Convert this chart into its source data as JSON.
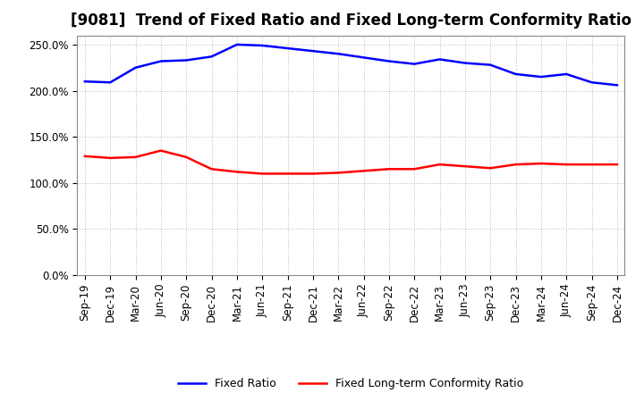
{
  "title": "[9081]  Trend of Fixed Ratio and Fixed Long-term Conformity Ratio",
  "x_labels": [
    "Sep-19",
    "Dec-19",
    "Mar-20",
    "Jun-20",
    "Sep-20",
    "Dec-20",
    "Mar-21",
    "Jun-21",
    "Sep-21",
    "Dec-21",
    "Mar-22",
    "Jun-22",
    "Sep-22",
    "Dec-22",
    "Mar-23",
    "Jun-23",
    "Sep-23",
    "Dec-23",
    "Mar-24",
    "Jun-24",
    "Sep-24",
    "Dec-24"
  ],
  "fixed_ratio": [
    210,
    209,
    225,
    232,
    233,
    237,
    250,
    249,
    246,
    243,
    240,
    236,
    232,
    229,
    234,
    230,
    228,
    218,
    215,
    218,
    209,
    206
  ],
  "fixed_lt_ratio": [
    129,
    127,
    128,
    135,
    128,
    115,
    112,
    110,
    110,
    110,
    111,
    113,
    115,
    115,
    120,
    118,
    116,
    120,
    121,
    120,
    120,
    120
  ],
  "blue_color": "#0000FF",
  "red_color": "#FF0000",
  "background_color": "#FFFFFF",
  "grid_color": "#BBBBBB",
  "ylim": [
    0,
    260
  ],
  "yticks": [
    0,
    50,
    100,
    150,
    200,
    250
  ],
  "legend_fixed_ratio": "Fixed Ratio",
  "legend_fixed_lt_ratio": "Fixed Long-term Conformity Ratio",
  "title_fontsize": 12,
  "tick_fontsize": 8.5,
  "legend_fontsize": 9,
  "linewidth": 1.8
}
